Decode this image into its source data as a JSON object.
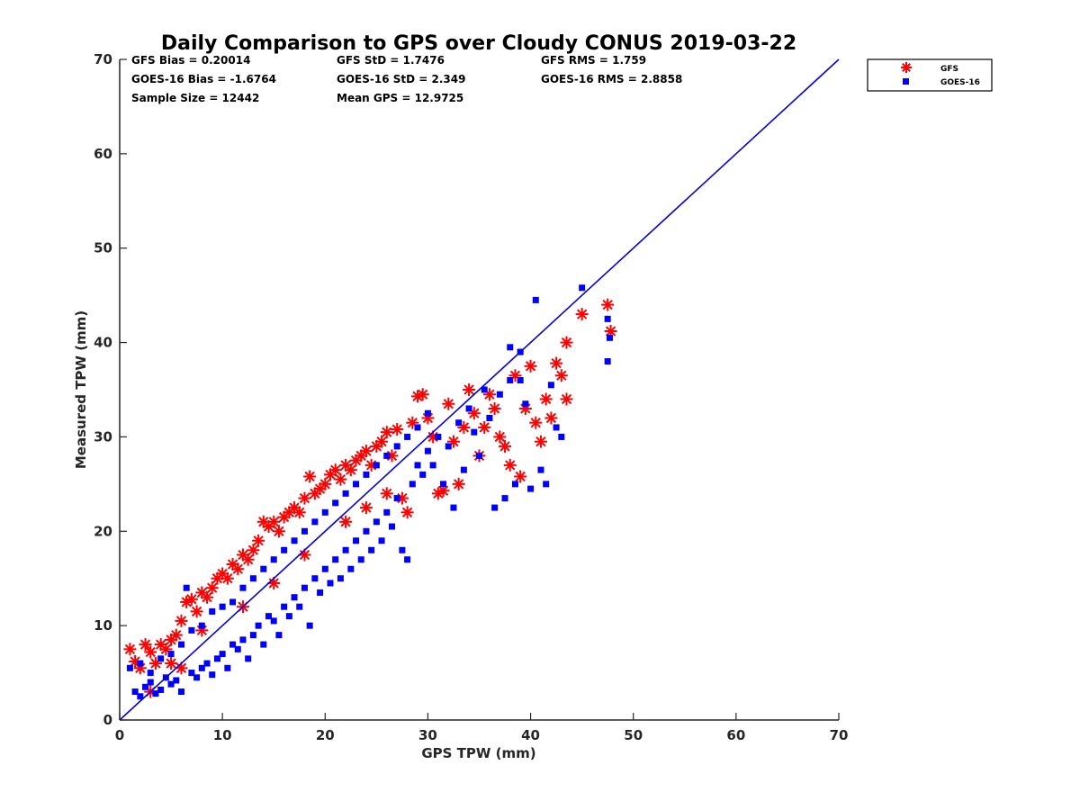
{
  "chart_data": {
    "type": "scatter",
    "title": "Daily Comparison to GPS over Cloudy CONUS 2019-03-22",
    "xlabel": "GPS TPW (mm)",
    "ylabel": "Measured TPW (mm)",
    "xlim": [
      0,
      70
    ],
    "ylim": [
      0,
      70
    ],
    "xticks": [
      "0",
      "10",
      "20",
      "30",
      "40",
      "50",
      "60",
      "70"
    ],
    "yticks": [
      "0",
      "10",
      "20",
      "30",
      "40",
      "50",
      "60",
      "70"
    ],
    "grid": false,
    "legend_position": "outside-top-right",
    "reference_line": {
      "x": [
        0,
        70
      ],
      "y": [
        0,
        70
      ],
      "color": "#0000e0"
    },
    "annotations": [
      {
        "text": "GFS Bias = 0.20014"
      },
      {
        "text": "GFS StD = 1.7476"
      },
      {
        "text": "GFS RMS = 1.759"
      },
      {
        "text": "GOES-16 Bias = -1.6764"
      },
      {
        "text": "GOES-16 StD = 2.349"
      },
      {
        "text": "GOES-16 RMS = 2.8858"
      },
      {
        "text": "Sample Size = 12442"
      },
      {
        "text": "Mean GPS = 12.9725"
      }
    ],
    "series": [
      {
        "name": "GFS",
        "marker": "asterisk",
        "color": "#ff0000",
        "points": [
          [
            1.0,
            7.5
          ],
          [
            1.5,
            6.2
          ],
          [
            2.0,
            5.5
          ],
          [
            2.5,
            8.0
          ],
          [
            3.0,
            7.2
          ],
          [
            3.5,
            6.0
          ],
          [
            4.0,
            8.0
          ],
          [
            4.5,
            7.5
          ],
          [
            5.0,
            8.5
          ],
          [
            5.5,
            9.0
          ],
          [
            6.0,
            10.5
          ],
          [
            6.5,
            12.5
          ],
          [
            7.0,
            12.8
          ],
          [
            7.5,
            11.5
          ],
          [
            8.0,
            13.5
          ],
          [
            8.5,
            13.0
          ],
          [
            9.0,
            14.0
          ],
          [
            9.5,
            15.0
          ],
          [
            10.0,
            15.5
          ],
          [
            10.5,
            15.0
          ],
          [
            11.0,
            16.5
          ],
          [
            11.5,
            16.0
          ],
          [
            12.0,
            17.5
          ],
          [
            12.5,
            17.0
          ],
          [
            13.0,
            18.0
          ],
          [
            13.5,
            19.0
          ],
          [
            14.0,
            21.0
          ],
          [
            14.5,
            20.5
          ],
          [
            15.0,
            21.0
          ],
          [
            15.5,
            20.0
          ],
          [
            16.0,
            21.5
          ],
          [
            16.5,
            22.0
          ],
          [
            17.0,
            22.5
          ],
          [
            17.5,
            22.0
          ],
          [
            18.0,
            23.5
          ],
          [
            18.5,
            25.8
          ],
          [
            19.0,
            24.0
          ],
          [
            19.5,
            24.5
          ],
          [
            20.0,
            25.0
          ],
          [
            20.5,
            26.0
          ],
          [
            21.0,
            26.5
          ],
          [
            21.5,
            25.5
          ],
          [
            22.0,
            27.0
          ],
          [
            22.5,
            26.5
          ],
          [
            23.0,
            27.5
          ],
          [
            23.5,
            28.0
          ],
          [
            24.0,
            28.5
          ],
          [
            24.5,
            27.0
          ],
          [
            25.0,
            29.0
          ],
          [
            25.5,
            29.5
          ],
          [
            26.0,
            30.5
          ],
          [
            26.5,
            28.0
          ],
          [
            27.0,
            30.8
          ],
          [
            27.5,
            23.5
          ],
          [
            28.0,
            22.0
          ],
          [
            28.5,
            31.5
          ],
          [
            29.0,
            34.3
          ],
          [
            29.5,
            34.5
          ],
          [
            30.0,
            32.0
          ],
          [
            30.5,
            30.0
          ],
          [
            31.0,
            24.0
          ],
          [
            31.5,
            24.3
          ],
          [
            32.0,
            33.5
          ],
          [
            32.5,
            29.5
          ],
          [
            33.0,
            25.0
          ],
          [
            33.5,
            31.0
          ],
          [
            34.0,
            35.0
          ],
          [
            34.5,
            32.5
          ],
          [
            35.0,
            28.0
          ],
          [
            35.5,
            31.0
          ],
          [
            36.0,
            34.5
          ],
          [
            36.5,
            33.0
          ],
          [
            37.0,
            30.0
          ],
          [
            37.5,
            29.0
          ],
          [
            38.0,
            27.0
          ],
          [
            38.5,
            36.5
          ],
          [
            39.0,
            25.8
          ],
          [
            39.5,
            33.0
          ],
          [
            40.0,
            37.5
          ],
          [
            40.5,
            31.5
          ],
          [
            41.0,
            29.5
          ],
          [
            41.5,
            34.0
          ],
          [
            42.0,
            32.0
          ],
          [
            42.5,
            37.8
          ],
          [
            43.0,
            36.5
          ],
          [
            43.5,
            34.0
          ],
          [
            43.5,
            40.0
          ],
          [
            45.0,
            43.0
          ],
          [
            47.5,
            44.0
          ],
          [
            47.8,
            41.2
          ],
          [
            3.0,
            3.0
          ],
          [
            5.0,
            6.0
          ],
          [
            8.0,
            9.5
          ],
          [
            12.0,
            12.0
          ],
          [
            15.0,
            14.5
          ],
          [
            18.0,
            17.5
          ],
          [
            22.0,
            21.0
          ],
          [
            24.0,
            22.5
          ],
          [
            26.0,
            24.0
          ],
          [
            6.0,
            5.5
          ]
        ]
      },
      {
        "name": "GOES-16",
        "marker": "square",
        "color": "#0000ff",
        "points": [
          [
            1.5,
            3.0
          ],
          [
            2.0,
            2.5
          ],
          [
            2.5,
            3.5
          ],
          [
            3.0,
            4.0
          ],
          [
            3.5,
            2.8
          ],
          [
            4.0,
            3.2
          ],
          [
            4.5,
            4.5
          ],
          [
            5.0,
            3.8
          ],
          [
            5.5,
            4.2
          ],
          [
            6.0,
            3.0
          ],
          [
            6.5,
            14.0
          ],
          [
            7.0,
            5.0
          ],
          [
            7.5,
            4.5
          ],
          [
            8.0,
            5.5
          ],
          [
            8.5,
            6.0
          ],
          [
            9.0,
            4.8
          ],
          [
            9.5,
            6.5
          ],
          [
            10.0,
            7.0
          ],
          [
            10.5,
            5.5
          ],
          [
            11.0,
            8.0
          ],
          [
            11.5,
            7.5
          ],
          [
            12.0,
            8.5
          ],
          [
            12.5,
            6.5
          ],
          [
            13.0,
            9.0
          ],
          [
            13.5,
            10.0
          ],
          [
            14.0,
            8.0
          ],
          [
            14.5,
            11.0
          ],
          [
            15.0,
            10.5
          ],
          [
            15.5,
            9.0
          ],
          [
            16.0,
            12.0
          ],
          [
            16.5,
            11.0
          ],
          [
            17.0,
            13.0
          ],
          [
            17.5,
            12.0
          ],
          [
            18.0,
            14.0
          ],
          [
            18.5,
            10.0
          ],
          [
            19.0,
            15.0
          ],
          [
            19.5,
            13.5
          ],
          [
            20.0,
            16.0
          ],
          [
            20.5,
            14.5
          ],
          [
            21.0,
            17.0
          ],
          [
            21.5,
            15.0
          ],
          [
            22.0,
            18.0
          ],
          [
            22.5,
            16.0
          ],
          [
            23.0,
            19.0
          ],
          [
            23.5,
            17.0
          ],
          [
            24.0,
            20.0
          ],
          [
            24.5,
            18.0
          ],
          [
            25.0,
            21.0
          ],
          [
            25.5,
            19.0
          ],
          [
            26.0,
            22.0
          ],
          [
            26.5,
            20.5
          ],
          [
            27.0,
            23.5
          ],
          [
            27.5,
            18.0
          ],
          [
            28.0,
            17.0
          ],
          [
            28.5,
            25.0
          ],
          [
            29.0,
            27.0
          ],
          [
            29.5,
            26.0
          ],
          [
            30.0,
            28.5
          ],
          [
            30.5,
            27.0
          ],
          [
            31.0,
            30.0
          ],
          [
            31.5,
            25.0
          ],
          [
            32.0,
            29.0
          ],
          [
            32.5,
            22.5
          ],
          [
            33.0,
            31.5
          ],
          [
            33.5,
            26.5
          ],
          [
            34.0,
            33.0
          ],
          [
            34.5,
            30.5
          ],
          [
            35.0,
            28.0
          ],
          [
            35.5,
            35.0
          ],
          [
            36.0,
            32.0
          ],
          [
            36.5,
            22.5
          ],
          [
            37.0,
            34.5
          ],
          [
            37.5,
            23.5
          ],
          [
            38.0,
            39.5
          ],
          [
            38.5,
            25.0
          ],
          [
            39.0,
            36.0
          ],
          [
            39.5,
            33.5
          ],
          [
            40.0,
            24.5
          ],
          [
            40.5,
            44.5
          ],
          [
            41.0,
            26.5
          ],
          [
            41.5,
            25.0
          ],
          [
            42.0,
            35.5
          ],
          [
            42.5,
            31.0
          ],
          [
            43.0,
            30.0
          ],
          [
            45.0,
            45.8
          ],
          [
            47.5,
            42.5
          ],
          [
            47.5,
            38.0
          ],
          [
            47.7,
            40.5
          ],
          [
            38.0,
            36.0
          ],
          [
            39.0,
            39.0
          ],
          [
            1.0,
            5.5
          ],
          [
            2.0,
            6.0
          ],
          [
            3.0,
            5.0
          ],
          [
            4.0,
            6.5
          ],
          [
            5.0,
            7.0
          ],
          [
            6.0,
            8.0
          ],
          [
            7.0,
            9.5
          ],
          [
            8.0,
            10.0
          ],
          [
            9.0,
            11.5
          ],
          [
            10.0,
            12.0
          ],
          [
            11.0,
            12.5
          ],
          [
            12.0,
            14.0
          ],
          [
            13.0,
            15.0
          ],
          [
            14.0,
            16.0
          ],
          [
            15.0,
            17.0
          ],
          [
            16.0,
            18.0
          ],
          [
            17.0,
            19.0
          ],
          [
            18.0,
            20.0
          ],
          [
            19.0,
            21.0
          ],
          [
            20.0,
            22.0
          ],
          [
            21.0,
            23.0
          ],
          [
            22.0,
            24.0
          ],
          [
            23.0,
            25.0
          ],
          [
            24.0,
            26.0
          ],
          [
            25.0,
            27.0
          ],
          [
            26.0,
            28.0
          ],
          [
            27.0,
            29.0
          ],
          [
            28.0,
            30.0
          ],
          [
            29.0,
            31.0
          ],
          [
            30.0,
            32.5
          ]
        ]
      }
    ]
  }
}
